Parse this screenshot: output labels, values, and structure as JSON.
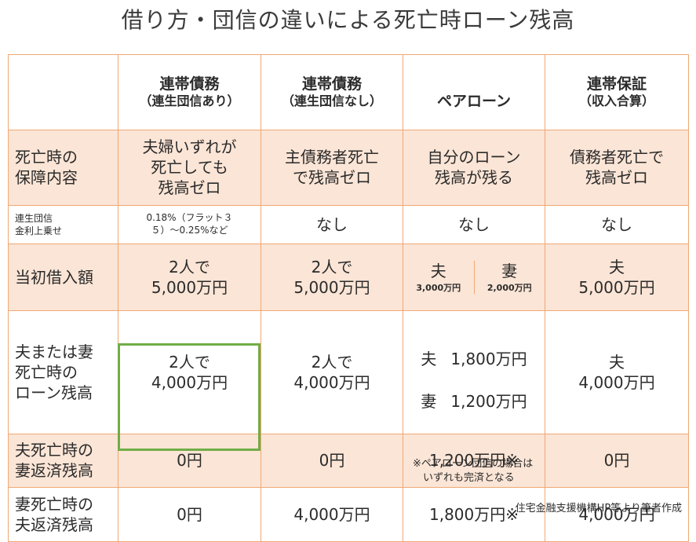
{
  "title": "借り方・団信の違いによる死亡時ローン残高",
  "header": {
    "col1": {
      "main": "連帯債務",
      "sub": "（連生団信あり）"
    },
    "col2": {
      "main": "連帯債務",
      "sub": "（連生団信なし）"
    },
    "col3": {
      "main": "ペアローン",
      "sub": ""
    },
    "col4": {
      "main": "連帯保証",
      "sub": "（収入合算）"
    }
  },
  "rows": {
    "coverage": {
      "label": "死亡時の\n保障内容",
      "c1": "夫婦いずれが\n死亡しても\n残高ゼロ",
      "c2": "主債務者死亡\nで残高ゼロ",
      "c3": "自分のローン\n残高が残る",
      "c4": "債務者死亡で\n残高ゼロ"
    },
    "rate": {
      "label": "連生団信\n金利上乗せ",
      "c1": "0.18%（フラット３\n５）～0.25%など",
      "c2": "なし",
      "c3": "なし",
      "c4": "なし"
    },
    "initial": {
      "label": "当初借入額",
      "c1": "2人で\n5,000万円",
      "c2": "2人で\n5,000万円",
      "c3a_name": "夫",
      "c3a_amt": "3,000万円",
      "c3b_name": "妻",
      "c3b_amt": "2,000万円",
      "c4": "夫\n5,000万円"
    },
    "remaining": {
      "label": "夫または妻\n死亡時の\nローン残高",
      "c1": "2人で\n4,000万円",
      "c2": "2人で\n4,000万円",
      "c3_husband": "夫",
      "c3_husband_amt": "1,800万円",
      "c3_wife": "妻",
      "c3_wife_amt": "1,200万円",
      "c4": "夫\n4,000万円"
    },
    "husband_dies": {
      "label": "夫死亡時の\n妻返済残高",
      "c1": "0円",
      "c2": "0円",
      "c3": "1,200万円※",
      "c4": "0円"
    },
    "wife_dies": {
      "label": "妻死亡時の\n夫返済残高",
      "c1": "0円",
      "c2": "4,000万円",
      "c3": "1,800万円※",
      "c4": "4,000万円"
    }
  },
  "note": "※ペアローン団信の場合は\n　いずれも完済となる",
  "source": "住宅金融支援機構HP等より筆者作成"
}
